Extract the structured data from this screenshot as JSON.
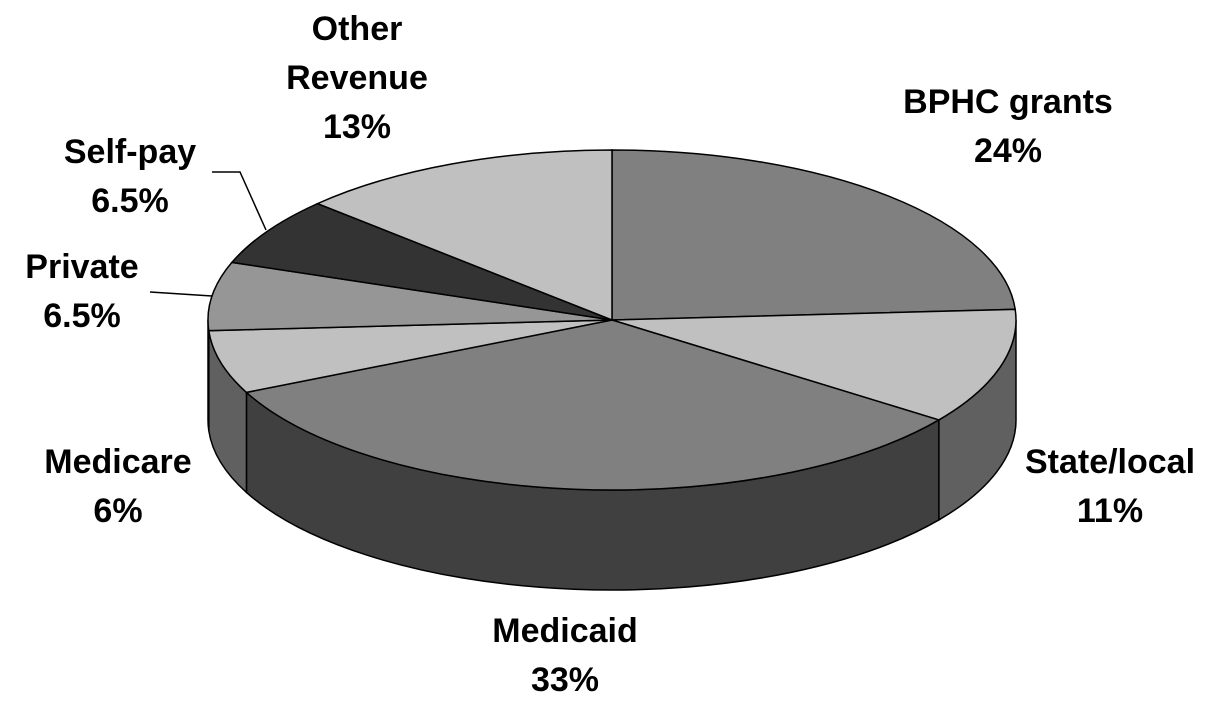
{
  "chart_data": {
    "type": "pie3d",
    "categories": [
      "BPHC grants",
      "State/local",
      "Medicaid",
      "Medicare",
      "Private",
      "Self-pay",
      "Other Revenue"
    ],
    "values": [
      24,
      11,
      33,
      6,
      6.5,
      6.5,
      13
    ],
    "value_labels": [
      "24%",
      "11%",
      "33%",
      "6%",
      "6.5%",
      "6.5%",
      "13%"
    ],
    "colors": [
      "#808080",
      "#c0c0c0",
      "#808080",
      "#c0c0c0",
      "#969696",
      "#333333",
      "#c0c0c0"
    ]
  }
}
